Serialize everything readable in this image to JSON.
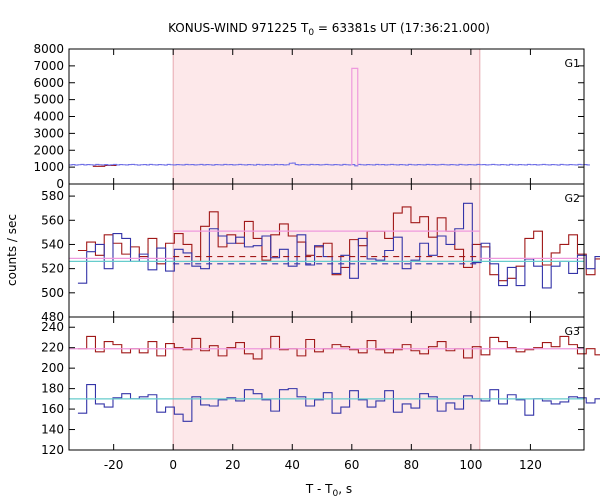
{
  "chart_data": {
    "type": "line",
    "title_main": "KONUS-WIND 971225 T",
    "title_sub": "0",
    "title_rest": " = 63381s UT (17:36:21.000)",
    "xlabel_main": "T - T",
    "xlabel_sub": "0",
    "xlabel_rest": ", s",
    "ylabel": "counts / sec",
    "xlim": [
      -35,
      138
    ],
    "x_ticks": [
      -20,
      0,
      20,
      40,
      60,
      80,
      100,
      120
    ],
    "highlight_interval": [
      0,
      103
    ],
    "colors": {
      "highlight": "#fde8ea",
      "g1_counts": "#6f6fe6",
      "g1_spike": "#ee99dd",
      "g2_red": "#a01818",
      "g2_blue": "#3434a8",
      "g2_cyan": "#66cccc",
      "g2_pink": "#ee99dd",
      "g3_red": "#a01818",
      "g3_blue": "#3434a8",
      "g3_cyan": "#66cccc",
      "g3_pink": "#ee99dd"
    },
    "panels": [
      {
        "name": "G1",
        "ylim": [
          0,
          8000
        ],
        "y_ticks": [
          0,
          1000,
          2000,
          3000,
          4000,
          5000,
          6000,
          7000,
          8000
        ],
        "series": [
          {
            "key": "g1_red",
            "color": "#a01818",
            "style": "step",
            "x0": -27,
            "dt": 4,
            "values": [
              1050,
              1100
            ]
          },
          {
            "key": "g1_blue",
            "color": "#6f6fe6",
            "style": "step",
            "x0": -35,
            "dt": 1,
            "values": [
              1130,
              1150,
              1120,
              1140,
              1160,
              1130,
              1150,
              1140,
              1120,
              1160,
              1140,
              1130,
              1150,
              1120,
              1140,
              1160,
              1130,
              1150,
              1140,
              1130,
              1150,
              1160,
              1140,
              1120,
              1140,
              1150,
              1130,
              1160,
              1140,
              1130,
              1150,
              1140,
              1120,
              1160,
              1140,
              1130,
              1150,
              1140,
              1130,
              1160,
              1140,
              1150,
              1130,
              1140,
              1160,
              1130,
              1150,
              1140,
              1120,
              1150,
              1140,
              1130,
              1160,
              1140,
              1150,
              1130,
              1140,
              1160,
              1140,
              1130,
              1150,
              1140,
              1120,
              1160,
              1140,
              1130,
              1150,
              1140,
              1130,
              1160,
              1140,
              1150,
              1130,
              1140,
              1230,
              1240,
              1150,
              1130,
              1150,
              1140,
              1130,
              1160,
              1140,
              1150,
              1130,
              1140,
              1160,
              1140,
              1130,
              1150,
              1140,
              1120,
              1160,
              1140,
              1130,
              1150,
              1080,
              1160,
              1140,
              1130,
              1150,
              1140,
              1130,
              1160,
              1140,
              1150,
              1130,
              1140,
              1160,
              1140,
              1130,
              1150,
              1140,
              1120,
              1160,
              1140,
              1130,
              1150,
              1140,
              1130,
              1160,
              1140,
              1150,
              1130,
              1140,
              1160,
              1140,
              1130,
              1150,
              1140,
              1120,
              1160,
              1140,
              1130,
              1150,
              1140,
              1130,
              1160,
              1140,
              1150,
              1130,
              1140,
              1160,
              1140,
              1130,
              1150,
              1140,
              1120,
              1160,
              1140,
              1130,
              1150,
              1140,
              1130,
              1160,
              1140,
              1150,
              1130,
              1140,
              1160,
              1140,
              1130,
              1150,
              1140,
              1120,
              1160,
              1140,
              1130,
              1150,
              1140,
              1130,
              1160,
              1140,
              1150,
              1130
            ]
          },
          {
            "key": "g1_spike",
            "color": "#ee99dd",
            "style": "box",
            "x_start": 60,
            "x_end": 62,
            "value": 6850,
            "base": 1100
          }
        ]
      },
      {
        "name": "G2",
        "ylim": [
          480,
          590
        ],
        "y_ticks": [
          480,
          500,
          520,
          540,
          560,
          580
        ],
        "series": [
          {
            "key": "g2_red",
            "color": "#a01818",
            "style": "step",
            "x0": -32,
            "dt": 2.944,
            "values": [
              535,
              542,
              531,
              548,
              541,
              532,
              538,
              530,
              545,
              524,
              541,
              549,
              540,
              526,
              555,
              567,
              538,
              548,
              541,
              559,
              545,
              527,
              548,
              557,
              547,
              542,
              531,
              538,
              541,
              515,
              521,
              544,
              539,
              551,
              551,
              545,
              566,
              571,
              558,
              563,
              546,
              562,
              551,
              536,
              521,
              540,
              538,
              515,
              510,
              512,
              522,
              545,
              551,
              523,
              533,
              540,
              548,
              532,
              515,
              528,
              527
            ]
          },
          {
            "key": "g2_blue",
            "color": "#3434a8",
            "style": "step",
            "x0": -32,
            "dt": 2.944,
            "values": [
              508,
              534,
              540,
              520,
              549,
              545,
              526,
              532,
              519,
              537,
              518,
              536,
              533,
              522,
              520,
              553,
              547,
              541,
              546,
              538,
              539,
              547,
              529,
              536,
              522,
              548,
              523,
              539,
              530,
              516,
              531,
              512,
              545,
              528,
              527,
              535,
              546,
              520,
              527,
              541,
              531,
              547,
              540,
              553,
              574,
              525,
              541,
              524,
              506,
              521,
              506,
              528,
              522,
              504,
              522,
              526,
              516,
              531,
              520,
              530,
              529
            ]
          },
          {
            "key": "g2_cyan",
            "color": "#66cccc",
            "style": "flat",
            "segments": [
              {
                "x0": -35,
                "x1": 138,
                "y": 526
              }
            ]
          },
          {
            "key": "g2_pink",
            "color": "#ee99dd",
            "style": "flat",
            "segments": [
              {
                "x0": -35,
                "x1": 0,
                "y": 528.5
              },
              {
                "x0": 0,
                "x1": 103,
                "y": 551
              },
              {
                "x0": 103,
                "x1": 138,
                "y": 528.5
              }
            ]
          },
          {
            "key": "g2_red_dash",
            "color": "#a01818",
            "style": "flat",
            "dash": "6,5",
            "segments": [
              {
                "x0": 0,
                "x1": 103,
                "y": 530
              }
            ]
          },
          {
            "key": "g2_blue_dash",
            "color": "#3434a8",
            "style": "flat",
            "dash": "6,5",
            "segments": [
              {
                "x0": 0,
                "x1": 103,
                "y": 524
              }
            ]
          }
        ]
      },
      {
        "name": "G3",
        "ylim": [
          120,
          250
        ],
        "y_ticks": [
          120,
          140,
          160,
          180,
          200,
          220,
          240
        ],
        "series": [
          {
            "key": "g3_red",
            "color": "#a01818",
            "style": "step",
            "x0": -32,
            "dt": 2.944,
            "values": [
              219,
              231,
              216,
              226,
              223,
              215,
              219,
              215,
              226,
              212,
              224,
              220,
              218,
              229,
              217,
              222,
              212,
              220,
              225,
              214,
              209,
              219,
              231,
              218,
              219,
              212,
              228,
              216,
              219,
              223,
              221,
              218,
              215,
              227,
              218,
              215,
              218,
              223,
              217,
              214,
              221,
              226,
              217,
              219,
              210,
              221,
              213,
              230,
              226,
              220,
              216,
              218,
              220,
              225,
              221,
              231,
              223,
              214,
              219,
              213,
              220
            ]
          },
          {
            "key": "g3_blue",
            "color": "#3434a8",
            "style": "step",
            "x0": -32,
            "dt": 2.944,
            "values": [
              156,
              184,
              165,
              162,
              171,
              175,
              170,
              172,
              174,
              157,
              162,
              155,
              148,
              172,
              164,
              163,
              169,
              171,
              168,
              179,
              175,
              169,
              158,
              179,
              180,
              172,
              163,
              169,
              176,
              156,
              162,
              178,
              169,
              162,
              168,
              178,
              157,
              165,
              161,
              175,
              172,
              158,
              166,
              160,
              173,
              170,
              168,
              179,
              165,
              174,
              169,
              154,
              170,
              168,
              165,
              167,
              172,
              171,
              166,
              170,
              175
            ]
          },
          {
            "key": "g3_cyan",
            "color": "#66cccc",
            "style": "flat",
            "segments": [
              {
                "x0": -35,
                "x1": 138,
                "y": 170
              }
            ]
          },
          {
            "key": "g3_pink",
            "color": "#ee99dd",
            "style": "flat",
            "segments": [
              {
                "x0": -35,
                "x1": 138,
                "y": 219
              }
            ]
          }
        ]
      }
    ]
  }
}
